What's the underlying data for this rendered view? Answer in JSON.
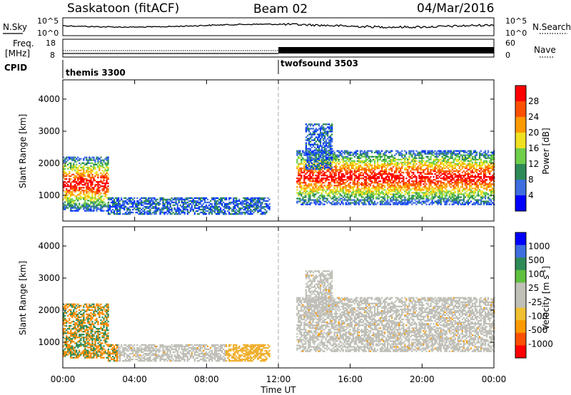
{
  "header": {
    "station": "Saskatoon (fitACF)",
    "beam": "Beam 02",
    "date": "04/Mar/2016"
  },
  "noise_panel": {
    "left_label": "N.Sky",
    "right_label": "N.Search",
    "left_ticks": [
      "10^5",
      "10^0"
    ],
    "right_ticks": [
      "10^5",
      "10^0"
    ]
  },
  "freq_panel": {
    "left_label_1": "Freq.",
    "left_label_2": "[MHz]",
    "right_label": "Nave",
    "left_ticks": [
      "18",
      "8"
    ],
    "right_ticks": [
      "60",
      "0"
    ]
  },
  "cpid": {
    "label": "CPID",
    "programs": [
      {
        "name": "themis 3300",
        "start_hour": 0
      },
      {
        "name": "twofsound 3503",
        "start_hour": 12
      }
    ]
  },
  "chart_data": [
    {
      "type": "heatmap",
      "panel": "power",
      "ylabel": "Slant Range [km]",
      "xlabel": "Time UT",
      "ylim": [
        200,
        4600
      ],
      "xlim_hours": [
        0,
        24
      ],
      "yticks": [
        "1000",
        "2000",
        "3000",
        "4000"
      ],
      "colorbar": {
        "label": "Power [dB]",
        "ticks": [
          "28",
          "24",
          "20",
          "16",
          "12",
          "8",
          "4"
        ],
        "colors": [
          "#0000ff",
          "#3f6ee0",
          "#2e8b57",
          "#6fcf4a",
          "#f0e020",
          "#ff9a00",
          "#ff5000",
          "#ff0000"
        ]
      },
      "echo_regions": [
        {
          "t0": 0.0,
          "t1": 2.5,
          "r0": 500,
          "r1": 2200,
          "level": "high"
        },
        {
          "t0": 2.5,
          "t1": 11.5,
          "r0": 400,
          "r1": 900,
          "level": "low"
        },
        {
          "t0": 13.0,
          "t1": 24.0,
          "r0": 700,
          "r1": 2400,
          "level": "high"
        },
        {
          "t0": 13.5,
          "t1": 15.0,
          "r0": 1800,
          "r1": 3200,
          "level": "low"
        }
      ]
    },
    {
      "type": "heatmap",
      "panel": "velocity",
      "ylabel": "Slant Range [km]",
      "xlabel": "Time UT",
      "ylim": [
        200,
        4600
      ],
      "xlim_hours": [
        0,
        24
      ],
      "yticks": [
        "1000",
        "2000",
        "3000",
        "4000"
      ],
      "colorbar": {
        "label": "Velocity [m s",
        "label_sup": "-1",
        "label_close": "]",
        "ticks": [
          "1000",
          "500",
          "100",
          "25",
          "-25",
          "-100",
          "-500",
          "-1000"
        ],
        "colors": [
          "#ff0000",
          "#ff5000",
          "#ff9a00",
          "#f0c030",
          "#c0c0b8",
          "#c0c0b8",
          "#60c040",
          "#2e8b57",
          "#3f6ee0",
          "#0000ff"
        ]
      },
      "xticks": [
        "00:00",
        "04:00",
        "08:00",
        "12:00",
        "16:00",
        "20:00",
        "00:00"
      ]
    }
  ]
}
